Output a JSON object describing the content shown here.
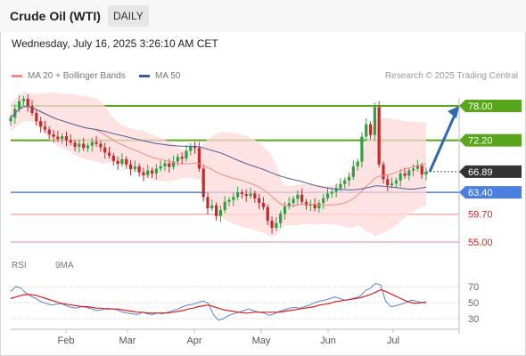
{
  "header": {
    "title": "Crude Oil (WTI)",
    "period": "DAILY",
    "timestamp": "Wednesday, July 16, 2025 3:26:10 AM CET"
  },
  "legend": {
    "ma20_label": "MA 20 + Bollinger Bands",
    "ma50_label": "MA 50",
    "credit": "Research © 2025 Trading Central"
  },
  "rsi_legend": {
    "rsi_label": "RSI",
    "ma9_label": "9MA"
  },
  "colors": {
    "up_candle": "#2ea043",
    "down_candle": "#c62828",
    "ma20": "#f08a8a",
    "bollinger_fill": "#ffd9d9",
    "ma50": "#4a5f9a",
    "resistance": "#5aa51e",
    "support_blue": "#4a7fe0",
    "support_red": "#f0a0a0",
    "rsi": "#5b82d6",
    "rsi_ma9": "#d62020",
    "arrow": "#2f67b2"
  },
  "chart_data": [
    {
      "type": "candlestick",
      "title": "Crude Oil (WTI)",
      "x_ticks": [
        "Feb",
        "Mar",
        "Apr",
        "May",
        "Jun",
        "Jul"
      ],
      "ylim": [
        53,
        83
      ],
      "price_levels": [
        {
          "value": 78.0,
          "label": "78.00",
          "kind": "resistance"
        },
        {
          "value": 72.2,
          "label": "72.20",
          "kind": "resistance"
        },
        {
          "value": 66.89,
          "label": "66.89",
          "kind": "last"
        },
        {
          "value": 63.4,
          "label": "63.40",
          "kind": "pivot"
        },
        {
          "value": 59.7,
          "label": "59.70",
          "kind": "support"
        },
        {
          "value": 55.0,
          "label": "55.00",
          "kind": "support"
        }
      ],
      "closes": [
        76.0,
        77.5,
        78.8,
        79.2,
        78.0,
        76.8,
        75.4,
        74.5,
        74.0,
        73.2,
        72.8,
        72.4,
        72.9,
        72.2,
        71.8,
        71.1,
        71.6,
        70.9,
        71.3,
        71.9,
        71.6,
        71.0,
        70.1,
        69.6,
        68.7,
        68.2,
        69.0,
        68.1,
        67.3,
        67.8,
        66.8,
        66.3,
        67.1,
        66.6,
        67.4,
        67.8,
        68.3,
        67.7,
        68.6,
        69.4,
        69.1,
        70.4,
        71.2,
        70.9,
        67.4,
        62.6,
        60.7,
        61.2,
        59.4,
        60.4,
        61.8,
        62.1,
        62.6,
        63.4,
        63.1,
        62.8,
        63.2,
        62.4,
        61.6,
        60.9,
        58.6,
        57.4,
        58.2,
        59.8,
        61.0,
        61.6,
        62.3,
        63.0,
        61.8,
        61.2,
        61.4,
        60.7,
        61.6,
        62.4,
        63.2,
        63.5,
        64.1,
        64.8,
        65.4,
        66.0,
        67.8,
        68.6,
        72.8,
        74.9,
        73.1,
        77.8,
        68.1,
        65.6,
        64.6,
        64.9,
        65.4,
        66.6,
        66.2,
        67.1,
        67.4,
        67.9,
        66.4,
        66.89
      ]
    },
    {
      "type": "line",
      "title": "RSI",
      "x_ticks": [
        "Feb",
        "Mar",
        "Apr",
        "May",
        "Jun",
        "Jul"
      ],
      "ylim": [
        20,
        80
      ],
      "y_ticks": [
        70,
        50,
        30
      ],
      "series": [
        {
          "name": "RSI",
          "values": [
            64,
            70,
            68,
            62,
            58,
            55,
            51,
            49,
            47,
            48,
            49,
            46,
            44,
            43,
            45,
            44,
            42,
            40,
            41,
            43,
            42,
            41,
            38,
            37,
            36,
            35,
            38,
            36,
            35,
            37,
            36,
            38,
            40,
            42,
            45,
            47,
            48,
            50,
            52,
            49,
            35,
            28,
            30,
            34,
            36,
            38,
            40,
            42,
            40,
            38,
            37,
            34,
            36,
            39,
            41,
            43,
            44,
            43,
            45,
            47,
            50,
            52,
            53,
            55,
            57,
            55,
            53,
            54,
            56,
            58,
            65,
            68,
            74,
            72,
            52,
            45,
            46,
            48,
            50,
            53,
            52,
            50,
            51
          ]
        },
        {
          "name": "9MA",
          "values": [
            55,
            57,
            59,
            60,
            60,
            59,
            57,
            55,
            53,
            51,
            49,
            48,
            47,
            46,
            45,
            45,
            44,
            43,
            43,
            42,
            42,
            42,
            41,
            40,
            39,
            38,
            38,
            37,
            37,
            37,
            37,
            37,
            38,
            39,
            40,
            42,
            43,
            45,
            46,
            47,
            45,
            43,
            41,
            40,
            39,
            38,
            37,
            37,
            38,
            38,
            38,
            38,
            38,
            38,
            39,
            40,
            41,
            42,
            43,
            44,
            45,
            47,
            48,
            49,
            51,
            52,
            53,
            54,
            55,
            56,
            58,
            60,
            63,
            66,
            64,
            61,
            58,
            55,
            52,
            50,
            49,
            50,
            50
          ]
        }
      ]
    }
  ]
}
